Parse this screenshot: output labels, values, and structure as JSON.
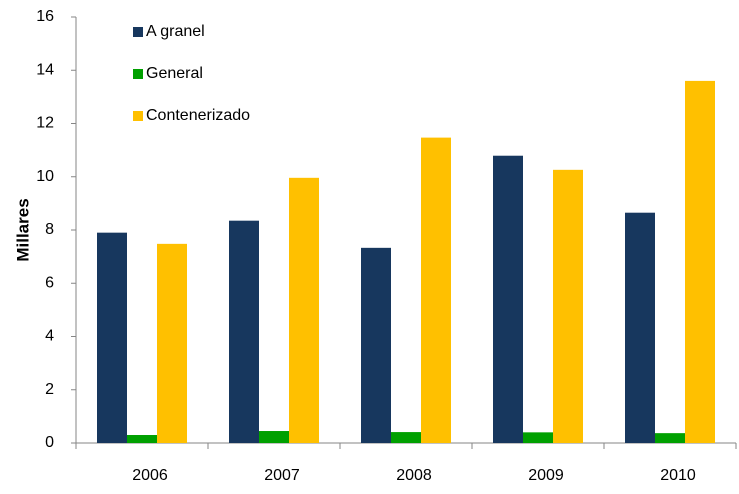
{
  "chart_data": {
    "type": "bar",
    "y_label": "Millares",
    "categories": [
      "2006",
      "2007",
      "2008",
      "2009",
      "2010"
    ],
    "series": [
      {
        "name": "A granel",
        "color": "#17375e",
        "values": [
          7.9,
          8.35,
          7.33,
          10.79,
          8.65
        ]
      },
      {
        "name": "General",
        "color": "#00a000",
        "values": [
          0.3,
          0.45,
          0.41,
          0.4,
          0.37
        ]
      },
      {
        "name": "Contenerizado",
        "color": "#ffc000",
        "values": [
          7.48,
          9.96,
          11.47,
          10.26,
          13.6
        ]
      }
    ],
    "ylim": [
      0,
      16
    ],
    "yticks": [
      0,
      2,
      4,
      6,
      8,
      10,
      12,
      14,
      16
    ],
    "grid": false,
    "legend": "top-left"
  }
}
